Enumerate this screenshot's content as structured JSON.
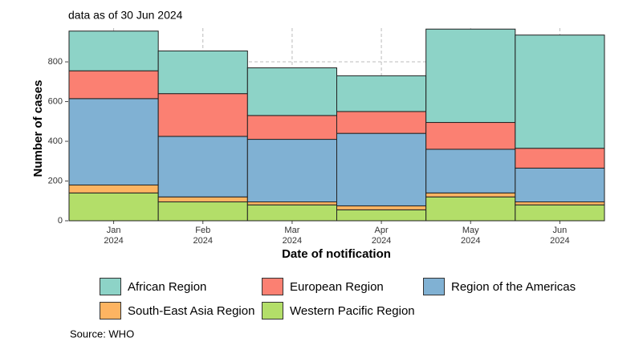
{
  "chart_data": {
    "type": "stacked_bar",
    "title": "data as of 30 Jun 2024",
    "y_label": "Number of cases",
    "x_label": "Date of notification",
    "source": "Source: WHO",
    "categories": [
      "Jan\n2024",
      "Feb\n2024",
      "Mar\n2024",
      "Apr\n2024",
      "May\n2024",
      "Jun\n2024"
    ],
    "series": [
      {
        "name": "African Region",
        "color": "#8dd3c7",
        "values": [
          200,
          215,
          240,
          180,
          470,
          570
        ]
      },
      {
        "name": "European Region",
        "color": "#fb8072",
        "values": [
          140,
          215,
          120,
          110,
          135,
          100
        ]
      },
      {
        "name": "Region of the Americas",
        "color": "#80b1d3",
        "values": [
          435,
          305,
          315,
          365,
          220,
          170
        ]
      },
      {
        "name": "South-East Asia Region",
        "color": "#fdb462",
        "values": [
          40,
          25,
          15,
          20,
          20,
          15
        ]
      },
      {
        "name": "Western Pacific Region",
        "color": "#b3de69",
        "values": [
          140,
          95,
          80,
          55,
          120,
          80
        ]
      }
    ],
    "ylim": [
      0,
      970
    ],
    "yticks": [
      0,
      200,
      400,
      600,
      800
    ],
    "grid": true
  }
}
